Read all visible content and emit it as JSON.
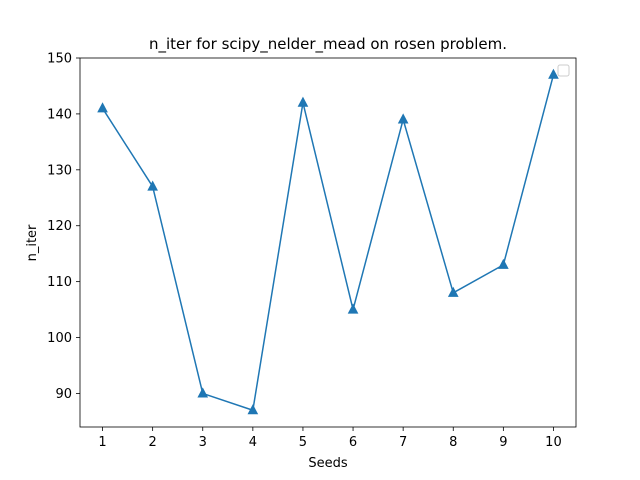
{
  "chart_data": {
    "type": "line",
    "title": "n_iter for scipy_nelder_mead on rosen problem.",
    "xlabel": "Seeds",
    "ylabel": "n_iter",
    "x": [
      1,
      2,
      3,
      4,
      5,
      6,
      7,
      8,
      9,
      10
    ],
    "series": [
      {
        "values": [
          141,
          127,
          90,
          87,
          142,
          105,
          139,
          108,
          113,
          147
        ],
        "color": "#1f77b4",
        "marker": "triangle-up"
      }
    ],
    "xticks": [
      1,
      2,
      3,
      4,
      5,
      6,
      7,
      8,
      9,
      10
    ],
    "yticks": [
      90,
      100,
      110,
      120,
      130,
      140,
      150
    ],
    "xlim": [
      0.55,
      10.45
    ],
    "ylim": [
      84,
      150
    ],
    "grid": false,
    "legend": {
      "position": "top-right",
      "entries": []
    }
  }
}
